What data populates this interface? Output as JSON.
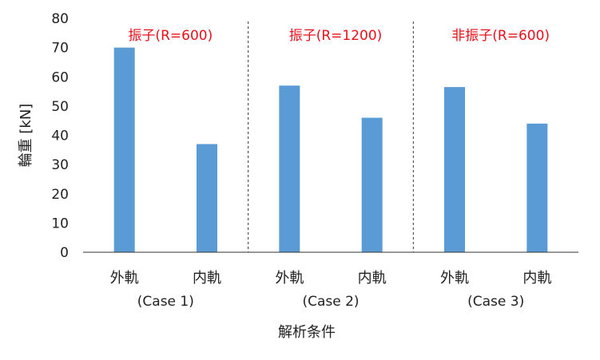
{
  "chart_data": {
    "type": "bar",
    "categories": [
      "外軌",
      "内軌",
      "外軌",
      "内軌",
      "外軌",
      "内軌"
    ],
    "values": [
      70,
      37,
      57,
      46,
      56.5,
      44
    ],
    "groups": [
      {
        "title": "振子(R=600)",
        "case": "(Case 1)"
      },
      {
        "title": "振子(R=1200)",
        "case": "(Case 2)"
      },
      {
        "title": "非振子(R=600)",
        "case": "(Case 3)"
      }
    ],
    "ylabel": "輪重 [kN]",
    "xlabel": "解析条件",
    "ylim": [
      0,
      80
    ],
    "yticks": [
      0,
      10,
      20,
      30,
      40,
      50,
      60,
      70,
      80
    ],
    "bar_color": "#5b9bd5",
    "group_title_color": "#e8101a",
    "legend": "none",
    "grid": false
  }
}
